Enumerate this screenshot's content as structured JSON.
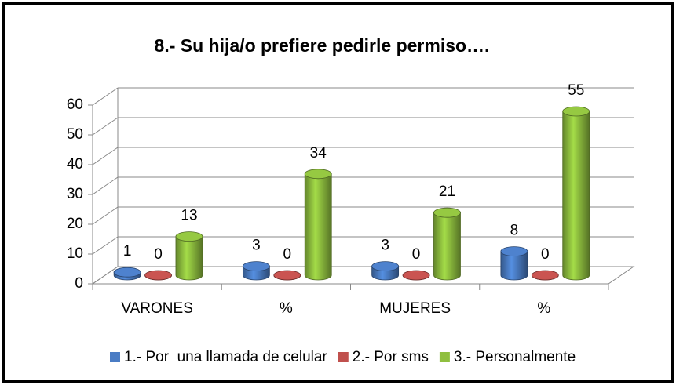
{
  "chart_data": {
    "type": "bar3d",
    "title": "8.- Su hija/o prefiere pedirle permiso….",
    "categories": [
      "VARONES",
      "%",
      "MUJERES",
      "%"
    ],
    "series": [
      {
        "name": "1.- Por  una llamada de celular",
        "color": "#4a7cc4",
        "values": [
          1,
          3,
          3,
          8
        ]
      },
      {
        "name": "2.- Por sms",
        "color": "#c0504d",
        "values": [
          0,
          0,
          0,
          0
        ]
      },
      {
        "name": "3.- Personalmente",
        "color": "#8fbf3f",
        "values": [
          13,
          34,
          21,
          55
        ]
      }
    ],
    "ylim": [
      0,
      60
    ],
    "yticks": [
      0,
      10,
      20,
      30,
      40,
      50,
      60
    ],
    "grid": true,
    "legend": "bottom"
  }
}
